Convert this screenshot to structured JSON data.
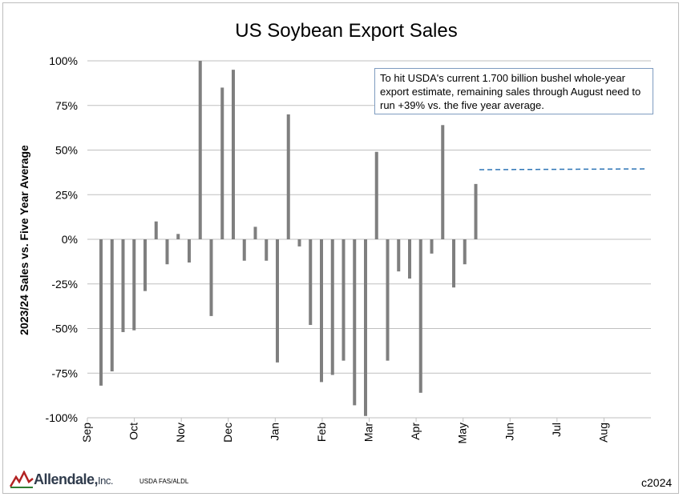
{
  "chart_data": {
    "type": "bar",
    "title": "US Soybean Export Sales",
    "ylabel": "2023/24 Sales vs. Five Year Average",
    "xlabel": "",
    "ylim": [
      -100,
      100
    ],
    "yticks": [
      "100%",
      "75%",
      "50%",
      "25%",
      "0%",
      "-25%",
      "-50%",
      "-75%",
      "-100%"
    ],
    "ytick_values": [
      100,
      75,
      50,
      25,
      0,
      -25,
      -50,
      -75,
      -100
    ],
    "months": [
      "Sep",
      "Oct",
      "Nov",
      "Dec",
      "Jan",
      "Feb",
      "Mar",
      "Apr",
      "May",
      "Jun",
      "Jul",
      "Aug"
    ],
    "series": [
      {
        "values": [
          -82,
          -74,
          -52,
          -51,
          -29,
          10,
          -14,
          3,
          -13,
          100,
          -43,
          85,
          95,
          -12,
          7,
          -12,
          -69,
          70,
          -4,
          -48,
          -80,
          -76,
          -68,
          -93,
          -99,
          49,
          -68,
          -18,
          -22,
          -86,
          -8,
          64,
          -27,
          -14,
          31
        ]
      }
    ],
    "target": {
      "value": 39
    },
    "grid": true,
    "bar_color": "#7f7f7f",
    "target_color": "#2e75b6"
  },
  "annotation": {
    "text": "To hit USDA's current 1.700 billion bushel whole-year export estimate, remaining sales through August need to run +39% vs. the five year average."
  },
  "footer": {
    "logo_text": "Allendale,",
    "logo_suffix": "Inc.",
    "source": "USDA FAS/ALDL",
    "copyright": "c2024"
  }
}
